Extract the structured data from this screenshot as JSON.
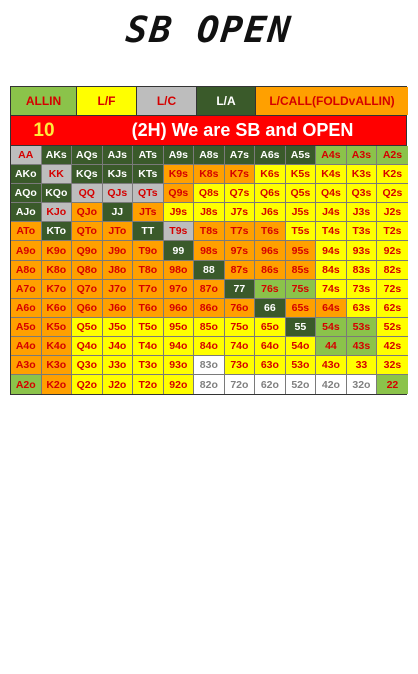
{
  "title": "SB OPEN",
  "legend": [
    {
      "key": "G",
      "label": "ALLIN",
      "bg": "#8bc34a",
      "fg": "#d50000"
    },
    {
      "key": "Y",
      "label": "L/F",
      "bg": "#ffff00",
      "fg": "#d50000"
    },
    {
      "key": "S",
      "label": "L/C",
      "bg": "#bdbdbd",
      "fg": "#d50000"
    },
    {
      "key": "D",
      "label": "L/A",
      "bg": "#3a5a2a",
      "fg": "#ffffff"
    },
    {
      "key": "O",
      "label": "L/CALL(FOLDvALLIN)",
      "bg": "#ffa000",
      "fg": "#d50000"
    }
  ],
  "scenario": {
    "number": "10",
    "text": "(2H) We are SB and OPEN"
  },
  "styles": {
    "G": {
      "bg": "#8bc34a",
      "fg": "#d50000"
    },
    "Y": {
      "bg": "#ffff00",
      "fg": "#d50000"
    },
    "S": {
      "bg": "#bdbdbd",
      "fg": "#d50000"
    },
    "D": {
      "bg": "#3a5a2a",
      "fg": "#ffffff"
    },
    "O": {
      "bg": "#ffa000",
      "fg": "#d50000"
    },
    "W": {
      "bg": "#ffffff",
      "fg": "#808080"
    }
  },
  "hands": [
    [
      "AA",
      "AKs",
      "AQs",
      "AJs",
      "ATs",
      "A9s",
      "A8s",
      "A7s",
      "A6s",
      "A5s",
      "A4s",
      "A3s",
      "A2s"
    ],
    [
      "AKo",
      "KK",
      "KQs",
      "KJs",
      "KTs",
      "K9s",
      "K8s",
      "K7s",
      "K6s",
      "K5s",
      "K4s",
      "K3s",
      "K2s"
    ],
    [
      "AQo",
      "KQo",
      "QQ",
      "QJs",
      "QTs",
      "Q9s",
      "Q8s",
      "Q7s",
      "Q6s",
      "Q5s",
      "Q4s",
      "Q3s",
      "Q2s"
    ],
    [
      "AJo",
      "KJo",
      "QJo",
      "JJ",
      "JTs",
      "J9s",
      "J8s",
      "J7s",
      "J6s",
      "J5s",
      "J4s",
      "J3s",
      "J2s"
    ],
    [
      "ATo",
      "KTo",
      "QTo",
      "JTo",
      "TT",
      "T9s",
      "T8s",
      "T7s",
      "T6s",
      "T5s",
      "T4s",
      "T3s",
      "T2s"
    ],
    [
      "A9o",
      "K9o",
      "Q9o",
      "J9o",
      "T9o",
      "99",
      "98s",
      "97s",
      "96s",
      "95s",
      "94s",
      "93s",
      "92s"
    ],
    [
      "A8o",
      "K8o",
      "Q8o",
      "J8o",
      "T8o",
      "98o",
      "88",
      "87s",
      "86s",
      "85s",
      "84s",
      "83s",
      "82s"
    ],
    [
      "A7o",
      "K7o",
      "Q7o",
      "J7o",
      "T7o",
      "97o",
      "87o",
      "77",
      "76s",
      "75s",
      "74s",
      "73s",
      "72s"
    ],
    [
      "A6o",
      "K6o",
      "Q6o",
      "J6o",
      "T6o",
      "96o",
      "86o",
      "76o",
      "66",
      "65s",
      "64s",
      "63s",
      "62s"
    ],
    [
      "A5o",
      "K5o",
      "Q5o",
      "J5o",
      "T5o",
      "95o",
      "85o",
      "75o",
      "65o",
      "55",
      "54s",
      "53s",
      "52s"
    ],
    [
      "A4o",
      "K4o",
      "Q4o",
      "J4o",
      "T4o",
      "94o",
      "84o",
      "74o",
      "64o",
      "54o",
      "44",
      "43s",
      "42s"
    ],
    [
      "A3o",
      "K3o",
      "Q3o",
      "J3o",
      "T3o",
      "93o",
      "83o",
      "73o",
      "63o",
      "53o",
      "43o",
      "33",
      "32s"
    ],
    [
      "A2o",
      "K2o",
      "Q2o",
      "J2o",
      "T2o",
      "92o",
      "82o",
      "72o",
      "62o",
      "52o",
      "42o",
      "32o",
      "22"
    ]
  ],
  "colors": [
    [
      "S",
      "D",
      "D",
      "D",
      "D",
      "D",
      "D",
      "D",
      "D",
      "D",
      "G",
      "G",
      "G"
    ],
    [
      "D",
      "S",
      "D",
      "D",
      "D",
      "O",
      "O",
      "O",
      "Y",
      "Y",
      "Y",
      "Y",
      "Y"
    ],
    [
      "D",
      "D",
      "S",
      "S",
      "S",
      "O",
      "Y",
      "Y",
      "Y",
      "Y",
      "Y",
      "Y",
      "Y"
    ],
    [
      "D",
      "S",
      "O",
      "D",
      "O",
      "Y",
      "Y",
      "Y",
      "Y",
      "Y",
      "Y",
      "Y",
      "Y"
    ],
    [
      "O",
      "D",
      "O",
      "O",
      "D",
      "S",
      "O",
      "O",
      "O",
      "Y",
      "Y",
      "Y",
      "Y"
    ],
    [
      "O",
      "O",
      "O",
      "O",
      "O",
      "D",
      "O",
      "O",
      "O",
      "O",
      "Y",
      "Y",
      "Y"
    ],
    [
      "O",
      "O",
      "O",
      "O",
      "O",
      "O",
      "D",
      "O",
      "O",
      "O",
      "Y",
      "Y",
      "Y"
    ],
    [
      "O",
      "O",
      "O",
      "O",
      "O",
      "O",
      "O",
      "D",
      "G",
      "G",
      "Y",
      "Y",
      "Y"
    ],
    [
      "O",
      "O",
      "O",
      "O",
      "O",
      "O",
      "O",
      "O",
      "D",
      "O",
      "O",
      "Y",
      "Y"
    ],
    [
      "O",
      "O",
      "Y",
      "Y",
      "Y",
      "Y",
      "Y",
      "Y",
      "Y",
      "D",
      "G",
      "G",
      "Y"
    ],
    [
      "O",
      "O",
      "Y",
      "Y",
      "Y",
      "Y",
      "Y",
      "Y",
      "Y",
      "Y",
      "G",
      "G",
      "Y"
    ],
    [
      "O",
      "O",
      "Y",
      "Y",
      "Y",
      "Y",
      "W",
      "Y",
      "Y",
      "Y",
      "Y",
      "Y",
      "Y"
    ],
    [
      "G",
      "O",
      "Y",
      "Y",
      "Y",
      "Y",
      "W",
      "W",
      "W",
      "W",
      "W",
      "W",
      "G"
    ]
  ]
}
